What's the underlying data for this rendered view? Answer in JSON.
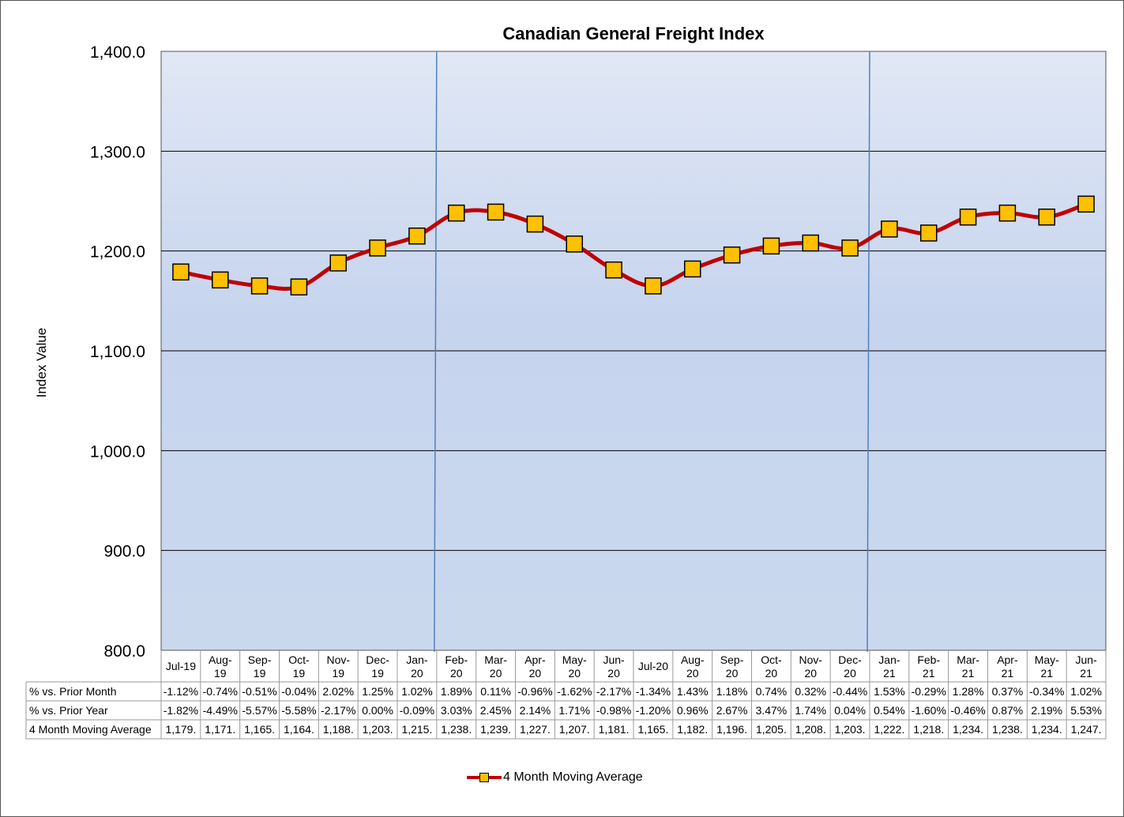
{
  "chart_data": {
    "type": "line",
    "title": "Canadian General Freight Index",
    "ylabel": "Index Value",
    "xlabel": "",
    "ylim": [
      800,
      1400
    ],
    "ytick_step": 100,
    "ytick_labels": [
      "800.0",
      "900.0",
      "1,000.0",
      "1,100.0",
      "1,200.0",
      "1,300.0",
      "1,400.0"
    ],
    "grid": true,
    "legend_position": "bottom",
    "year_separators_after": [
      "Jan-20",
      "Dec-20"
    ],
    "categories": [
      "Jul-19",
      "Aug-19",
      "Sep-19",
      "Oct-19",
      "Nov-19",
      "Dec-19",
      "Jan-20",
      "Feb-20",
      "Mar-20",
      "Apr-20",
      "May-20",
      "Jun-20",
      "Jul-20",
      "Aug-20",
      "Sep-20",
      "Oct-20",
      "Nov-20",
      "Dec-20",
      "Jan-21",
      "Feb-21",
      "Mar-21",
      "Apr-21",
      "May-21",
      "Jun-21"
    ],
    "category_label_lines": [
      [
        "Jul-19"
      ],
      [
        "Aug-",
        "19"
      ],
      [
        "Sep-",
        "19"
      ],
      [
        "Oct-",
        "19"
      ],
      [
        "Nov-",
        "19"
      ],
      [
        "Dec-",
        "19"
      ],
      [
        "Jan-",
        "20"
      ],
      [
        "Feb-",
        "20"
      ],
      [
        "Mar-",
        "20"
      ],
      [
        "Apr-",
        "20"
      ],
      [
        "May-",
        "20"
      ],
      [
        "Jun-",
        "20"
      ],
      [
        "Jul-20"
      ],
      [
        "Aug-",
        "20"
      ],
      [
        "Sep-",
        "20"
      ],
      [
        "Oct-",
        "20"
      ],
      [
        "Nov-",
        "20"
      ],
      [
        "Dec-",
        "20"
      ],
      [
        "Jan-",
        "21"
      ],
      [
        "Feb-",
        "21"
      ],
      [
        "Mar-",
        "21"
      ],
      [
        "Apr-",
        "21"
      ],
      [
        "May-",
        "21"
      ],
      [
        "Jun-",
        "21"
      ]
    ],
    "series": [
      {
        "name": "4 Month Moving Average",
        "color": "#c00000",
        "marker_color": "#ffc000",
        "values": [
          1179,
          1171,
          1165,
          1164,
          1188,
          1203,
          1215,
          1238,
          1239,
          1227,
          1207,
          1181,
          1165,
          1182,
          1196,
          1205,
          1208,
          1203,
          1222,
          1218,
          1234,
          1238,
          1234,
          1247
        ]
      }
    ],
    "table": {
      "rows": [
        {
          "label": "% vs. Prior Month",
          "values": [
            "-1.12%",
            "-0.74%",
            "-0.51%",
            "-0.04%",
            "2.02%",
            "1.25%",
            "1.02%",
            "1.89%",
            "0.11%",
            "-0.96%",
            "-1.62%",
            "-2.17%",
            "-1.34%",
            "1.43%",
            "1.18%",
            "0.74%",
            "0.32%",
            "-0.44%",
            "1.53%",
            "-0.29%",
            "1.28%",
            "0.37%",
            "-0.34%",
            "1.02%"
          ]
        },
        {
          "label": "% vs. Prior Year",
          "values": [
            "-1.82%",
            "-4.49%",
            "-5.57%",
            "-5.58%",
            "-2.17%",
            "0.00%",
            "-0.09%",
            "3.03%",
            "2.45%",
            "2.14%",
            "1.71%",
            "-0.98%",
            "-1.20%",
            "0.96%",
            "2.67%",
            "3.47%",
            "1.74%",
            "0.04%",
            "0.54%",
            "-1.60%",
            "-0.46%",
            "0.87%",
            "2.19%",
            "5.53%"
          ]
        },
        {
          "label": "4 Month Moving Average",
          "values": [
            "1,179.",
            "1,171.",
            "1,165.",
            "1,164.",
            "1,188.",
            "1,203.",
            "1,215.",
            "1,238.",
            "1,239.",
            "1,227.",
            "1,207.",
            "1,181.",
            "1,165.",
            "1,182.",
            "1,196.",
            "1,205.",
            "1,208.",
            "1,203.",
            "1,222.",
            "1,218.",
            "1,234.",
            "1,238.",
            "1,234.",
            "1,247."
          ]
        }
      ]
    }
  }
}
